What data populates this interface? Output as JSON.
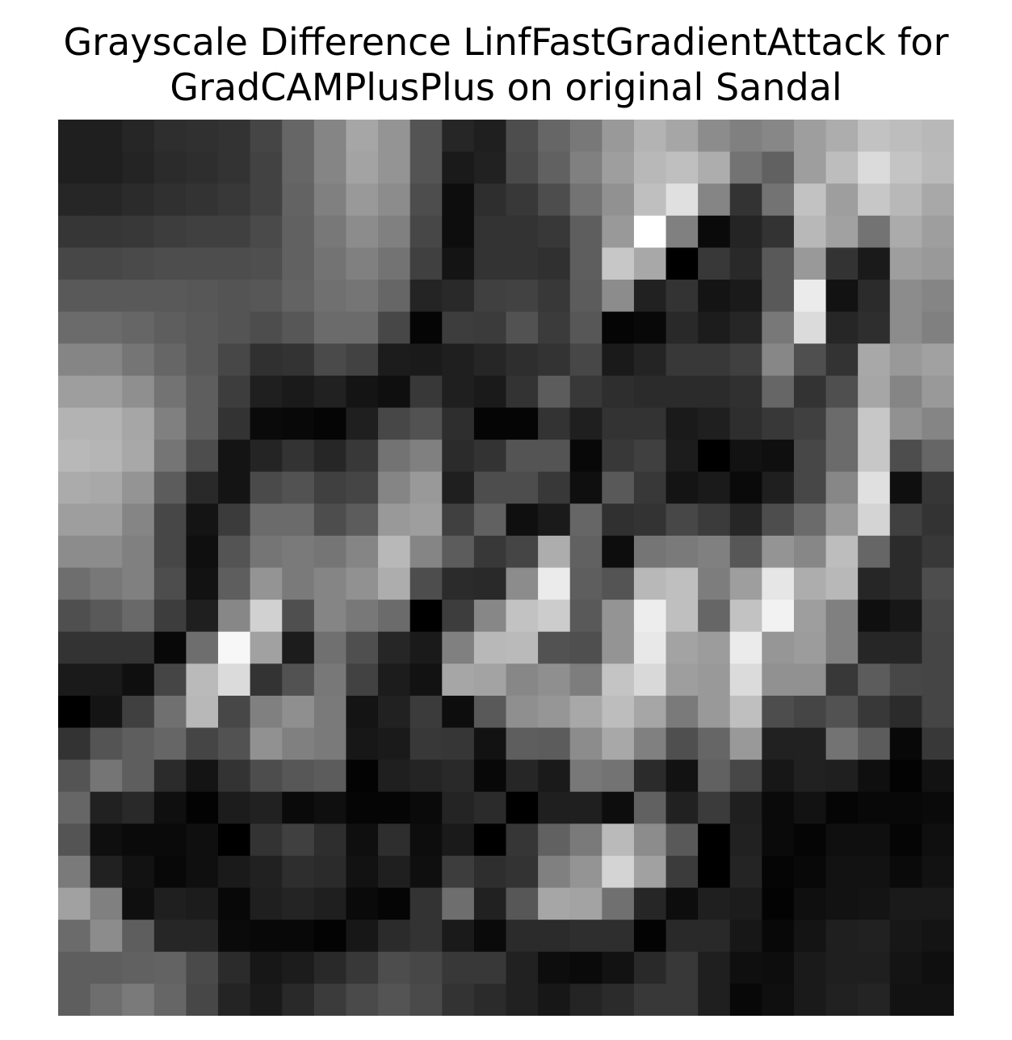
{
  "chart_data": {
    "type": "heatmap",
    "title_lines": [
      "Grayscale Difference LinfFastGradientAttack for",
      "GradCAMPlusPlus on original Sandal"
    ],
    "colormap": "gray",
    "axes_visible": false,
    "rows": 28,
    "cols": 28,
    "values": [
      [
        0.12,
        0.12,
        0.15,
        0.18,
        0.19,
        0.2,
        0.27,
        0.4,
        0.52,
        0.65,
        0.58,
        0.33,
        0.15,
        0.12,
        0.3,
        0.4,
        0.47,
        0.6,
        0.7,
        0.65,
        0.55,
        0.5,
        0.53,
        0.62,
        0.68,
        0.76,
        0.74,
        0.72
      ],
      [
        0.12,
        0.12,
        0.14,
        0.17,
        0.18,
        0.2,
        0.26,
        0.4,
        0.52,
        0.64,
        0.58,
        0.33,
        0.1,
        0.13,
        0.29,
        0.38,
        0.5,
        0.62,
        0.72,
        0.75,
        0.68,
        0.45,
        0.38,
        0.62,
        0.74,
        0.86,
        0.77,
        0.73
      ],
      [
        0.15,
        0.15,
        0.17,
        0.19,
        0.2,
        0.22,
        0.26,
        0.39,
        0.5,
        0.6,
        0.55,
        0.3,
        0.05,
        0.18,
        0.22,
        0.3,
        0.45,
        0.57,
        0.75,
        0.88,
        0.52,
        0.2,
        0.45,
        0.76,
        0.62,
        0.78,
        0.72,
        0.66
      ],
      [
        0.21,
        0.21,
        0.22,
        0.24,
        0.25,
        0.25,
        0.29,
        0.38,
        0.47,
        0.55,
        0.5,
        0.28,
        0.05,
        0.2,
        0.2,
        0.22,
        0.37,
        0.6,
        1.0,
        0.5,
        0.04,
        0.14,
        0.2,
        0.72,
        0.63,
        0.45,
        0.67,
        0.62
      ],
      [
        0.28,
        0.28,
        0.29,
        0.3,
        0.3,
        0.3,
        0.31,
        0.38,
        0.45,
        0.5,
        0.45,
        0.25,
        0.08,
        0.2,
        0.2,
        0.19,
        0.37,
        0.78,
        0.66,
        0.0,
        0.22,
        0.16,
        0.35,
        0.6,
        0.2,
        0.1,
        0.62,
        0.6
      ],
      [
        0.35,
        0.35,
        0.35,
        0.35,
        0.34,
        0.33,
        0.34,
        0.39,
        0.44,
        0.46,
        0.4,
        0.14,
        0.16,
        0.25,
        0.26,
        0.22,
        0.36,
        0.55,
        0.13,
        0.2,
        0.08,
        0.1,
        0.35,
        0.92,
        0.07,
        0.17,
        0.55,
        0.52
      ],
      [
        0.42,
        0.42,
        0.4,
        0.37,
        0.35,
        0.33,
        0.3,
        0.34,
        0.42,
        0.42,
        0.28,
        0.02,
        0.24,
        0.23,
        0.32,
        0.23,
        0.34,
        0.02,
        0.03,
        0.16,
        0.11,
        0.15,
        0.47,
        0.86,
        0.15,
        0.18,
        0.55,
        0.5
      ],
      [
        0.52,
        0.52,
        0.46,
        0.4,
        0.35,
        0.28,
        0.19,
        0.2,
        0.29,
        0.26,
        0.11,
        0.1,
        0.12,
        0.15,
        0.18,
        0.2,
        0.28,
        0.1,
        0.14,
        0.22,
        0.22,
        0.25,
        0.53,
        0.31,
        0.2,
        0.66,
        0.6,
        0.63
      ],
      [
        0.62,
        0.62,
        0.56,
        0.45,
        0.37,
        0.24,
        0.12,
        0.1,
        0.13,
        0.08,
        0.06,
        0.22,
        0.12,
        0.1,
        0.2,
        0.36,
        0.22,
        0.18,
        0.17,
        0.17,
        0.17,
        0.19,
        0.4,
        0.2,
        0.31,
        0.65,
        0.52,
        0.6
      ],
      [
        0.7,
        0.7,
        0.65,
        0.5,
        0.37,
        0.2,
        0.04,
        0.03,
        0.02,
        0.12,
        0.28,
        0.32,
        0.18,
        0.02,
        0.02,
        0.2,
        0.12,
        0.2,
        0.2,
        0.1,
        0.12,
        0.18,
        0.22,
        0.25,
        0.42,
        0.78,
        0.57,
        0.52
      ],
      [
        0.72,
        0.71,
        0.66,
        0.46,
        0.3,
        0.08,
        0.14,
        0.2,
        0.15,
        0.22,
        0.45,
        0.5,
        0.17,
        0.2,
        0.33,
        0.33,
        0.03,
        0.22,
        0.25,
        0.11,
        0.0,
        0.07,
        0.06,
        0.28,
        0.42,
        0.78,
        0.3,
        0.4
      ],
      [
        0.67,
        0.66,
        0.58,
        0.36,
        0.16,
        0.08,
        0.29,
        0.32,
        0.25,
        0.27,
        0.52,
        0.6,
        0.12,
        0.3,
        0.3,
        0.22,
        0.06,
        0.35,
        0.22,
        0.08,
        0.1,
        0.04,
        0.12,
        0.28,
        0.53,
        0.88,
        0.06,
        0.21
      ],
      [
        0.62,
        0.62,
        0.52,
        0.28,
        0.08,
        0.23,
        0.42,
        0.42,
        0.3,
        0.36,
        0.6,
        0.62,
        0.25,
        0.38,
        0.06,
        0.1,
        0.4,
        0.19,
        0.2,
        0.28,
        0.23,
        0.15,
        0.3,
        0.42,
        0.6,
        0.83,
        0.25,
        0.2
      ],
      [
        0.55,
        0.55,
        0.5,
        0.28,
        0.06,
        0.33,
        0.46,
        0.48,
        0.46,
        0.52,
        0.72,
        0.52,
        0.36,
        0.22,
        0.27,
        0.68,
        0.38,
        0.05,
        0.46,
        0.48,
        0.5,
        0.34,
        0.58,
        0.53,
        0.74,
        0.4,
        0.17,
        0.22
      ],
      [
        0.43,
        0.47,
        0.5,
        0.3,
        0.07,
        0.37,
        0.58,
        0.48,
        0.52,
        0.57,
        0.68,
        0.3,
        0.17,
        0.16,
        0.55,
        0.92,
        0.37,
        0.33,
        0.72,
        0.75,
        0.49,
        0.62,
        0.9,
        0.68,
        0.72,
        0.15,
        0.17,
        0.3
      ],
      [
        0.31,
        0.35,
        0.41,
        0.24,
        0.12,
        0.53,
        0.82,
        0.31,
        0.52,
        0.47,
        0.42,
        0.0,
        0.24,
        0.53,
        0.76,
        0.8,
        0.35,
        0.58,
        0.93,
        0.75,
        0.4,
        0.76,
        0.95,
        0.62,
        0.5,
        0.06,
        0.09,
        0.28
      ],
      [
        0.2,
        0.2,
        0.2,
        0.03,
        0.43,
        0.97,
        0.63,
        0.11,
        0.44,
        0.31,
        0.15,
        0.1,
        0.5,
        0.72,
        0.73,
        0.32,
        0.31,
        0.58,
        0.91,
        0.64,
        0.61,
        0.92,
        0.59,
        0.61,
        0.5,
        0.15,
        0.15,
        0.27
      ],
      [
        0.1,
        0.1,
        0.06,
        0.27,
        0.73,
        0.86,
        0.2,
        0.32,
        0.47,
        0.26,
        0.11,
        0.07,
        0.65,
        0.64,
        0.53,
        0.56,
        0.49,
        0.77,
        0.85,
        0.62,
        0.6,
        0.86,
        0.57,
        0.57,
        0.22,
        0.36,
        0.28,
        0.27
      ],
      [
        0.0,
        0.08,
        0.25,
        0.44,
        0.72,
        0.28,
        0.5,
        0.56,
        0.48,
        0.08,
        0.13,
        0.23,
        0.05,
        0.35,
        0.56,
        0.59,
        0.66,
        0.74,
        0.65,
        0.48,
        0.6,
        0.75,
        0.3,
        0.27,
        0.32,
        0.22,
        0.17,
        0.27
      ],
      [
        0.2,
        0.33,
        0.37,
        0.4,
        0.27,
        0.32,
        0.57,
        0.5,
        0.48,
        0.09,
        0.1,
        0.22,
        0.21,
        0.07,
        0.37,
        0.36,
        0.55,
        0.66,
        0.5,
        0.31,
        0.4,
        0.6,
        0.13,
        0.13,
        0.45,
        0.36,
        0.03,
        0.22
      ],
      [
        0.33,
        0.46,
        0.37,
        0.17,
        0.08,
        0.2,
        0.3,
        0.34,
        0.36,
        0.01,
        0.12,
        0.14,
        0.16,
        0.03,
        0.15,
        0.1,
        0.47,
        0.45,
        0.17,
        0.07,
        0.38,
        0.28,
        0.09,
        0.13,
        0.12,
        0.06,
        0.01,
        0.07
      ],
      [
        0.4,
        0.13,
        0.16,
        0.06,
        0.01,
        0.11,
        0.13,
        0.04,
        0.06,
        0.02,
        0.02,
        0.04,
        0.14,
        0.17,
        0.0,
        0.12,
        0.12,
        0.05,
        0.38,
        0.13,
        0.23,
        0.12,
        0.04,
        0.07,
        0.02,
        0.03,
        0.03,
        0.04
      ],
      [
        0.33,
        0.06,
        0.04,
        0.04,
        0.06,
        0.0,
        0.2,
        0.25,
        0.18,
        0.06,
        0.18,
        0.05,
        0.1,
        0.0,
        0.21,
        0.38,
        0.48,
        0.73,
        0.55,
        0.35,
        0.0,
        0.13,
        0.04,
        0.02,
        0.06,
        0.06,
        0.02,
        0.06
      ],
      [
        0.48,
        0.13,
        0.07,
        0.03,
        0.06,
        0.1,
        0.13,
        0.18,
        0.17,
        0.07,
        0.12,
        0.06,
        0.24,
        0.18,
        0.2,
        0.5,
        0.58,
        0.83,
        0.63,
        0.23,
        0.0,
        0.14,
        0.02,
        0.03,
        0.07,
        0.07,
        0.04,
        0.07
      ],
      [
        0.63,
        0.5,
        0.06,
        0.12,
        0.11,
        0.03,
        0.12,
        0.14,
        0.12,
        0.04,
        0.02,
        0.2,
        0.43,
        0.13,
        0.34,
        0.65,
        0.64,
        0.44,
        0.15,
        0.05,
        0.12,
        0.11,
        0.01,
        0.06,
        0.07,
        0.08,
        0.1,
        0.1
      ],
      [
        0.42,
        0.55,
        0.37,
        0.15,
        0.15,
        0.04,
        0.03,
        0.03,
        0.01,
        0.09,
        0.17,
        0.2,
        0.1,
        0.04,
        0.17,
        0.17,
        0.18,
        0.18,
        0.01,
        0.16,
        0.16,
        0.09,
        0.03,
        0.08,
        0.12,
        0.13,
        0.09,
        0.08
      ],
      [
        0.37,
        0.37,
        0.38,
        0.39,
        0.29,
        0.17,
        0.09,
        0.11,
        0.16,
        0.22,
        0.3,
        0.28,
        0.22,
        0.22,
        0.13,
        0.05,
        0.04,
        0.07,
        0.16,
        0.22,
        0.12,
        0.06,
        0.05,
        0.1,
        0.12,
        0.12,
        0.08,
        0.06
      ],
      [
        0.37,
        0.43,
        0.48,
        0.4,
        0.28,
        0.14,
        0.1,
        0.16,
        0.23,
        0.29,
        0.33,
        0.29,
        0.2,
        0.17,
        0.13,
        0.09,
        0.14,
        0.17,
        0.22,
        0.22,
        0.12,
        0.03,
        0.06,
        0.1,
        0.13,
        0.14,
        0.07,
        0.07
      ]
    ]
  }
}
